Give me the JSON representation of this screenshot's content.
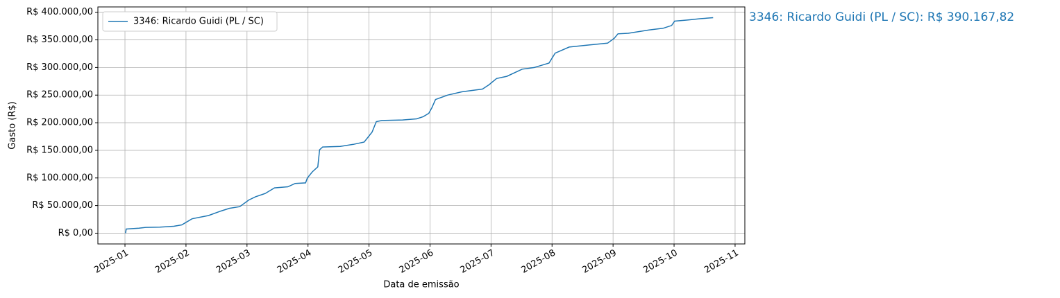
{
  "chart_data": {
    "type": "line",
    "xlabel": "Data de emissão",
    "ylabel": "Gasto (R$)",
    "annotation": "3346: Ricardo Guidi (PL / SC): R$ 390.167,82",
    "x": [
      1.01,
      1.02,
      1.23,
      1.34,
      1.57,
      1.8,
      1.93,
      2.1,
      2.37,
      2.57,
      2.71,
      2.88,
      3.03,
      3.14,
      3.3,
      3.45,
      3.67,
      3.79,
      3.96,
      3.99,
      4.07,
      4.16,
      4.19,
      4.24,
      4.53,
      4.75,
      4.92,
      5.05,
      5.12,
      5.21,
      5.55,
      5.78,
      5.89,
      5.98,
      6.03,
      6.09,
      6.29,
      6.52,
      6.86,
      6.97,
      7.09,
      7.26,
      7.51,
      7.71,
      7.83,
      7.95,
      8.05,
      8.28,
      8.62,
      8.91,
      9.02,
      9.08,
      9.25,
      9.42,
      9.59,
      9.82,
      9.96,
      10.01,
      10.22,
      10.44,
      10.64
    ],
    "series": [
      {
        "name": "3346: Ricardo Guidi (PL / SC)",
        "color": "#1f77b4",
        "values": [
          0,
          7500,
          9000,
          10500,
          11000,
          12500,
          15000,
          26000,
          32000,
          40000,
          45000,
          48000,
          60000,
          66000,
          72000,
          82000,
          84000,
          90000,
          91000,
          100000,
          111000,
          120000,
          151000,
          156000,
          157000,
          161000,
          165000,
          183000,
          202000,
          204000,
          205000,
          207000,
          211000,
          217000,
          227000,
          242000,
          250000,
          256000,
          261000,
          269000,
          280000,
          284000,
          297000,
          300000,
          304000,
          308000,
          326000,
          337000,
          341000,
          344000,
          353000,
          361000,
          362000,
          365000,
          368000,
          371000,
          376000,
          384000,
          386000,
          388500,
          390167.82
        ]
      }
    ],
    "xlim": [
      0.556,
      11.16
    ],
    "xticks": [
      {
        "value": 1,
        "label": "2025-01"
      },
      {
        "value": 2,
        "label": "2025-02"
      },
      {
        "value": 3,
        "label": "2025-03"
      },
      {
        "value": 4,
        "label": "2025-04"
      },
      {
        "value": 5,
        "label": "2025-05"
      },
      {
        "value": 6,
        "label": "2025-06"
      },
      {
        "value": 7,
        "label": "2025-07"
      },
      {
        "value": 8,
        "label": "2025-08"
      },
      {
        "value": 9,
        "label": "2025-09"
      },
      {
        "value": 10,
        "label": "2025-10"
      },
      {
        "value": 11,
        "label": "2025-11"
      }
    ],
    "ylim": [
      -19508,
      409676
    ],
    "yticks": [
      {
        "value": 0,
        "label": "R$ 0,00"
      },
      {
        "value": 50000,
        "label": "R$ 50.000,00"
      },
      {
        "value": 100000,
        "label": "R$ 100.000,00"
      },
      {
        "value": 150000,
        "label": "R$ 150.000,00"
      },
      {
        "value": 200000,
        "label": "R$ 200.000,00"
      },
      {
        "value": 250000,
        "label": "R$ 250.000,00"
      },
      {
        "value": 300000,
        "label": "R$ 300.000,00"
      },
      {
        "value": 350000,
        "label": "R$ 350.000,00"
      },
      {
        "value": 400000,
        "label": "R$ 400.000,00"
      }
    ],
    "grid": true,
    "legend": "upper left"
  }
}
